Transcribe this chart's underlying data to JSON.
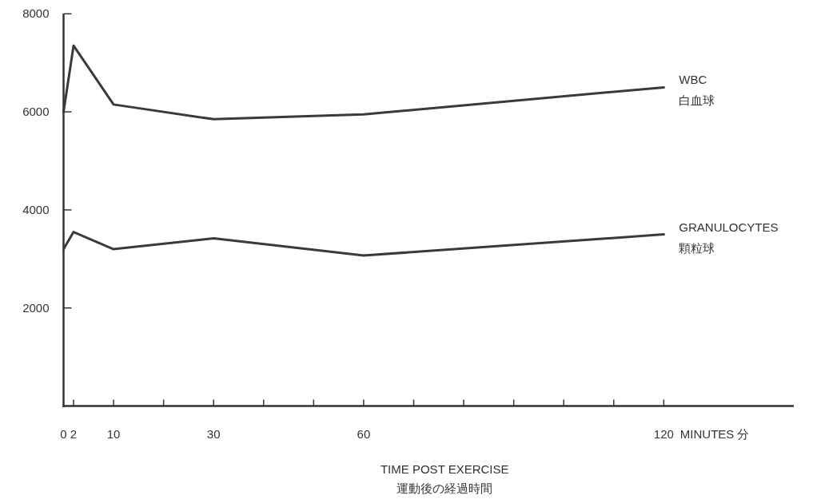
{
  "chart_data": {
    "type": "line",
    "xlabel": "TIME POST EXERCISE\n運動後の経過時間",
    "annotations": [
      "MINUTES 分"
    ],
    "x": [
      0,
      2,
      10,
      30,
      60,
      120
    ],
    "series": [
      {
        "name": "WBC\n白血球",
        "color": "#3a3a3a",
        "values": [
          6000,
          7350,
          6150,
          5850,
          5950,
          6500
        ]
      },
      {
        "name": "GRANULOCYTES\n顆粒球",
        "color": "#3a3a3a",
        "values": [
          3200,
          3550,
          3200,
          3420,
          3070,
          3500
        ]
      }
    ],
    "xlim": [
      0,
      146
    ],
    "ylim": [
      0,
      8000
    ],
    "xticks": [
      0,
      2,
      10,
      {
        "value": 20,
        "label": null
      },
      30,
      {
        "value": 40,
        "label": null
      },
      {
        "value": 50,
        "label": null
      },
      60,
      {
        "value": 70,
        "label": null
      },
      {
        "value": 80,
        "label": null
      },
      {
        "value": 90,
        "label": null
      },
      {
        "value": 100,
        "label": null
      },
      {
        "value": 110,
        "label": null
      },
      120
    ],
    "yticks": [
      2000,
      4000,
      6000,
      8000
    ],
    "grid": false,
    "legend": false,
    "marker": "none",
    "line_style": "solid"
  }
}
